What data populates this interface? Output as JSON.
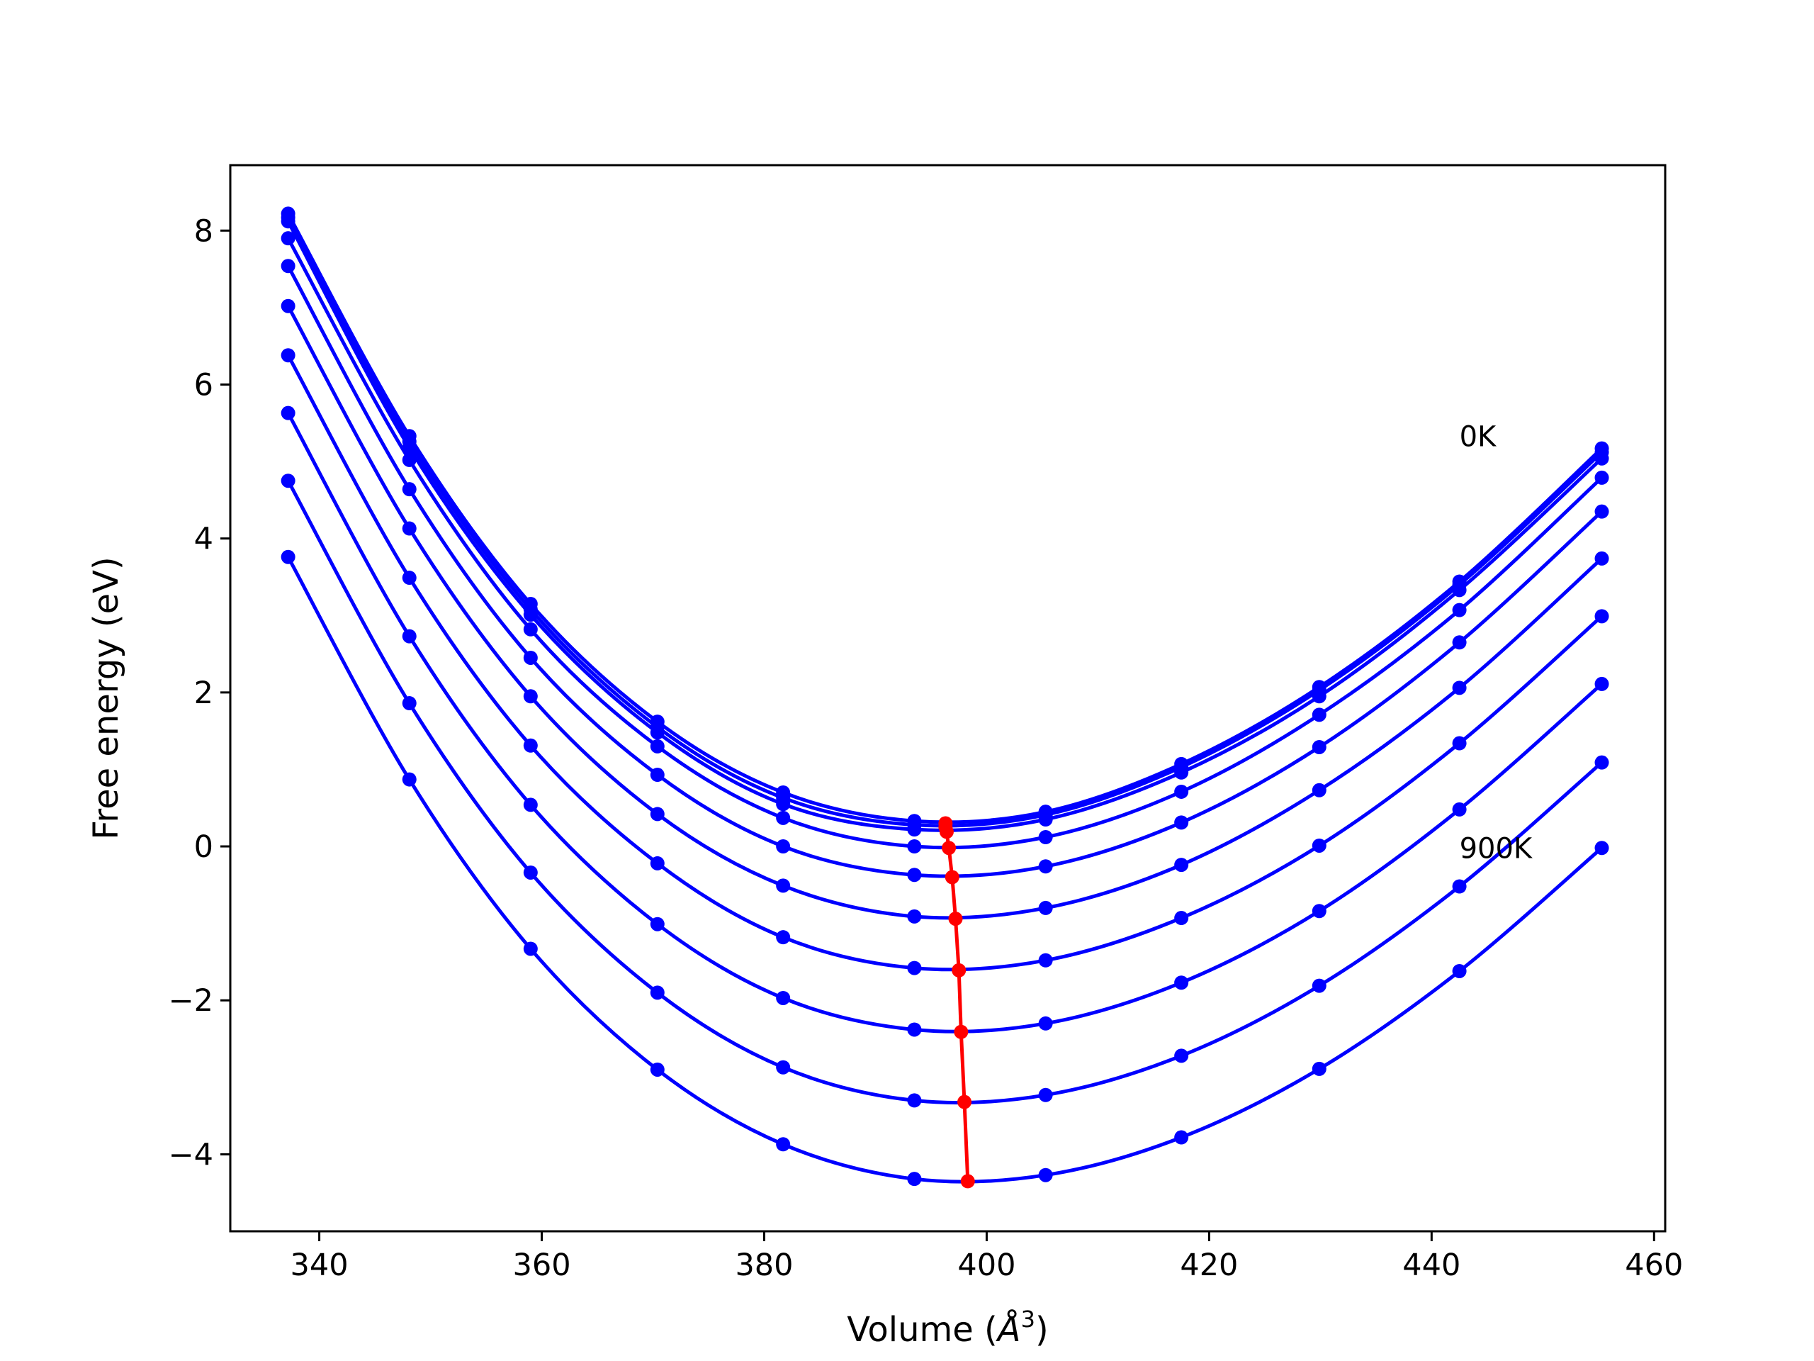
{
  "chart_data": {
    "type": "line",
    "xlabel": "Volume (Å³)",
    "xlabel_main": "Volume (",
    "xlabel_unit": "Å",
    "xlabel_exp": "3",
    "xlabel_close": ")",
    "ylabel": "Free energy (eV)",
    "xlim": [
      332,
      461
    ],
    "ylim": [
      -5.0,
      8.85
    ],
    "xticks": [
      340,
      360,
      380,
      400,
      420,
      440,
      460
    ],
    "yticks": [
      -4,
      -2,
      0,
      2,
      4,
      6,
      8
    ],
    "xtick_labels": [
      "340",
      "360",
      "380",
      "400",
      "420",
      "440",
      "460"
    ],
    "ytick_labels": [
      "−4",
      "−2",
      "0",
      "2",
      "4",
      "6",
      "8"
    ],
    "grid": false,
    "legend": "none",
    "annotations": [
      {
        "text": "0K",
        "x": 442.5,
        "y": 5.2
      },
      {
        "text": "900K",
        "x": 442.5,
        "y": -0.15
      }
    ],
    "colors": {
      "curves": "#0000ff",
      "minima": "#ff0000"
    },
    "x": [
      337.2,
      348.1,
      359.0,
      370.4,
      381.7,
      393.5,
      405.3,
      417.5,
      429.9,
      442.5,
      455.3
    ],
    "series": [
      {
        "values": [
          8.22,
          5.33,
          3.15,
          1.62,
          0.7,
          0.33,
          0.45,
          1.07,
          2.07,
          3.44,
          5.17
        ]
      },
      {
        "values": [
          8.17,
          5.26,
          3.08,
          1.55,
          0.63,
          0.28,
          0.41,
          1.03,
          2.03,
          3.4,
          5.12
        ]
      },
      {
        "values": [
          8.12,
          5.18,
          3.01,
          1.48,
          0.55,
          0.22,
          0.35,
          0.96,
          1.95,
          3.33,
          5.04
        ]
      },
      {
        "values": [
          7.9,
          5.02,
          2.82,
          1.3,
          0.37,
          0.0,
          0.12,
          0.71,
          1.71,
          3.07,
          4.79
        ]
      },
      {
        "values": [
          7.54,
          4.64,
          2.45,
          0.93,
          0.0,
          -0.37,
          -0.26,
          0.31,
          1.29,
          2.65,
          4.35
        ]
      },
      {
        "values": [
          7.02,
          4.13,
          1.95,
          0.42,
          -0.51,
          -0.91,
          -0.8,
          -0.24,
          0.73,
          2.06,
          3.74
        ]
      },
      {
        "values": [
          6.38,
          3.49,
          1.31,
          -0.22,
          -1.18,
          -1.58,
          -1.48,
          -0.93,
          0.01,
          1.34,
          2.99
        ]
      },
      {
        "values": [
          5.63,
          2.73,
          0.54,
          -1.01,
          -1.97,
          -2.38,
          -2.3,
          -1.77,
          -0.84,
          0.48,
          2.11
        ]
      },
      {
        "values": [
          4.75,
          1.86,
          -0.34,
          -1.9,
          -2.87,
          -3.3,
          -3.23,
          -2.72,
          -1.81,
          -0.52,
          1.09
        ]
      },
      {
        "values": [
          3.76,
          0.87,
          -1.33,
          -2.9,
          -3.87,
          -4.32,
          -4.27,
          -3.78,
          -2.89,
          -1.62,
          -0.02
        ]
      }
    ],
    "minima_line": {
      "x": [
        396.3,
        396.3,
        396.4,
        396.6,
        396.9,
        397.2,
        397.5,
        397.7,
        398.0
      ],
      "y": [
        0.3,
        0.25,
        0.19,
        -0.02,
        -0.4,
        -0.94,
        -1.61,
        -2.41,
        -3.32
      ],
      "x_last": 398.3,
      "y_last": -4.35
    }
  }
}
